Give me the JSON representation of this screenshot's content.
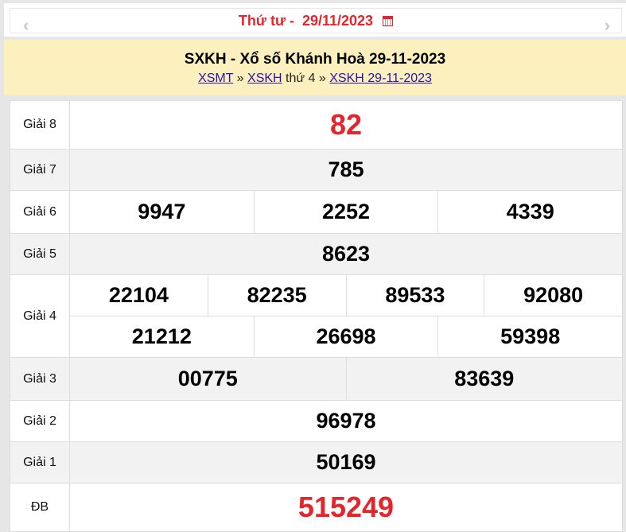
{
  "date_nav": {
    "label": "Thứ tư -  29/11/2023",
    "prev_icon": "chevron-left-icon",
    "next_icon": "chevron-right-icon",
    "calendar_icon": "calendar-icon"
  },
  "header": {
    "title": "SXKH - Xổ số Khánh Hoà 29-11-2023",
    "crumb_1": "XSMT",
    "sep_1": " » ",
    "crumb_2": "XSKH",
    "mid": " thứ 4 » ",
    "crumb_3": "XSKH 29-11-2023"
  },
  "colors": {
    "accent_red": "#e3262b",
    "header_bg": "#fcf0bf",
    "link": "#2a13a8"
  },
  "prizes": {
    "g8": {
      "label": "Giải 8",
      "numbers": [
        "82"
      ]
    },
    "g7": {
      "label": "Giải 7",
      "numbers": [
        "785"
      ]
    },
    "g6": {
      "label": "Giải 6",
      "numbers": [
        "9947",
        "2252",
        "4339"
      ]
    },
    "g5": {
      "label": "Giải 5",
      "numbers": [
        "8623"
      ]
    },
    "g4": {
      "label": "Giải 4",
      "numbers": [
        "22104",
        "82235",
        "89533",
        "92080",
        "21212",
        "26698",
        "59398"
      ]
    },
    "g3": {
      "label": "Giải 3",
      "numbers": [
        "00775",
        "83639"
      ]
    },
    "g2": {
      "label": "Giải 2",
      "numbers": [
        "96978"
      ]
    },
    "g1": {
      "label": "Giải 1",
      "numbers": [
        "50169"
      ]
    },
    "db": {
      "label": "ĐB",
      "numbers": [
        "515249"
      ]
    }
  }
}
